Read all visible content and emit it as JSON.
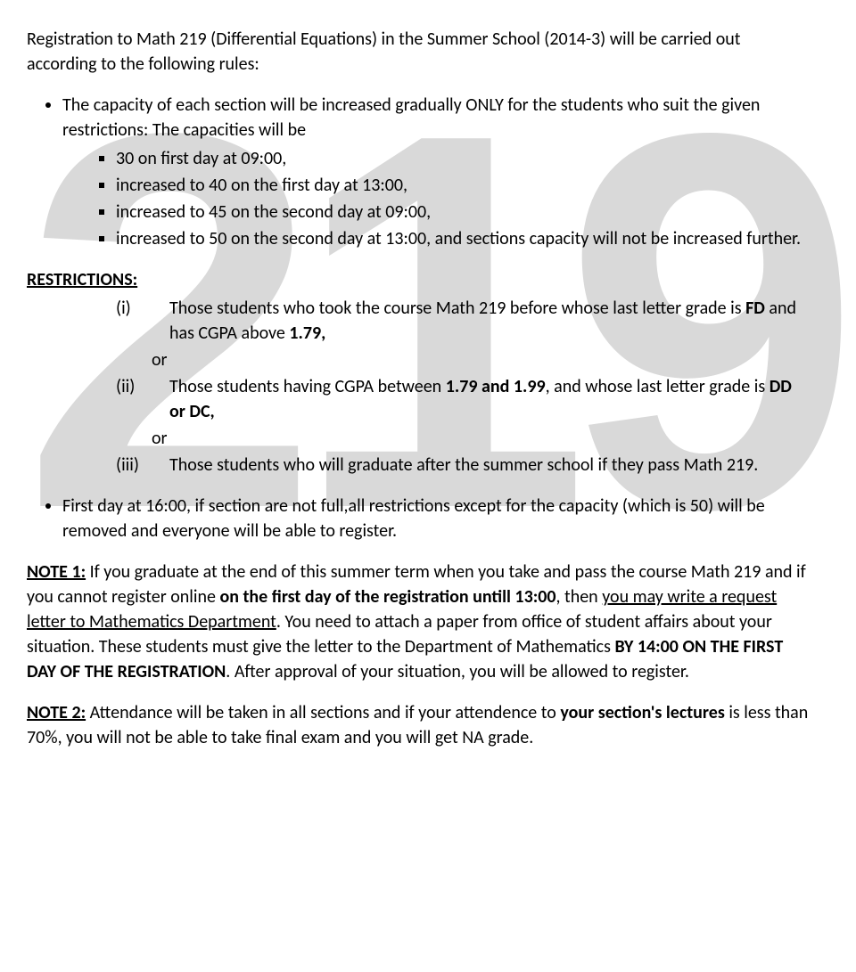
{
  "watermark": "219",
  "intro": "Registration to Math 219 (Differential Equations) in the Summer School (2014-3) will be carried out according to the following rules:",
  "bullet1_lead": "The capacity of each section will be increased gradually ONLY for the students who suit the given restrictions: The capacities will be",
  "capacity": {
    "c1": "30 on first day at 09:00,",
    "c2": "increased to 40 on the first day at 13:00,",
    "c3": "increased to 45 on the second day at  09:00,",
    "c4": "increased to 50 on the second day at 13:00,  and sections capacity will not be increased further."
  },
  "restrictions_label": "RESTRICTIONS:",
  "restrictions": {
    "i_num": "(i)",
    "i_text_a": "Those students who took the course  Math 219 before whose last letter grade is ",
    "i_fd": "FD",
    "i_text_b": " and has CGPA above ",
    "i_cgpa": "1.79,",
    "or1": "or",
    "ii_num": "(ii)",
    "ii_text_a": "Those students having CGPA between ",
    "ii_range": "1.79 and 1.99",
    "ii_text_b": ", and whose last letter grade is ",
    "ii_grades": "DD or DC,",
    "or2": "or",
    "iii_num": "(iii)",
    "iii_text": "Those students who will graduate after the summer school if they pass Math 219."
  },
  "bullet2": "First day at 16:00, if section are not full,all restrictions except for the capacity (which is 50) will be removed  and everyone will be able to register.",
  "note1": {
    "label": "NOTE 1:",
    "t1": " If you graduate at the end of this summer term when you take and pass the course Math 219 and if you cannot register online ",
    "b1": "on the first day of the registration untill 13:00",
    "t2": ", then ",
    "u1": "you may write a request letter to Mathematics Department",
    "t3": ". You need to attach a paper from office of student affairs about your situation. These students must give the letter to the Department of Mathematics ",
    "b2": "BY 14:00 ON THE FIRST DAY OF THE REGISTRATION",
    "t4": ".  After approval of your situation, you will be allowed to register."
  },
  "note2": {
    "label": "NOTE 2:",
    "t1": " Attendance will be taken in all sections and if your attendence to ",
    "b1": "your section's lectures",
    "t2": " is less than 70%, you will not be able to take final exam and you will get NA grade."
  }
}
